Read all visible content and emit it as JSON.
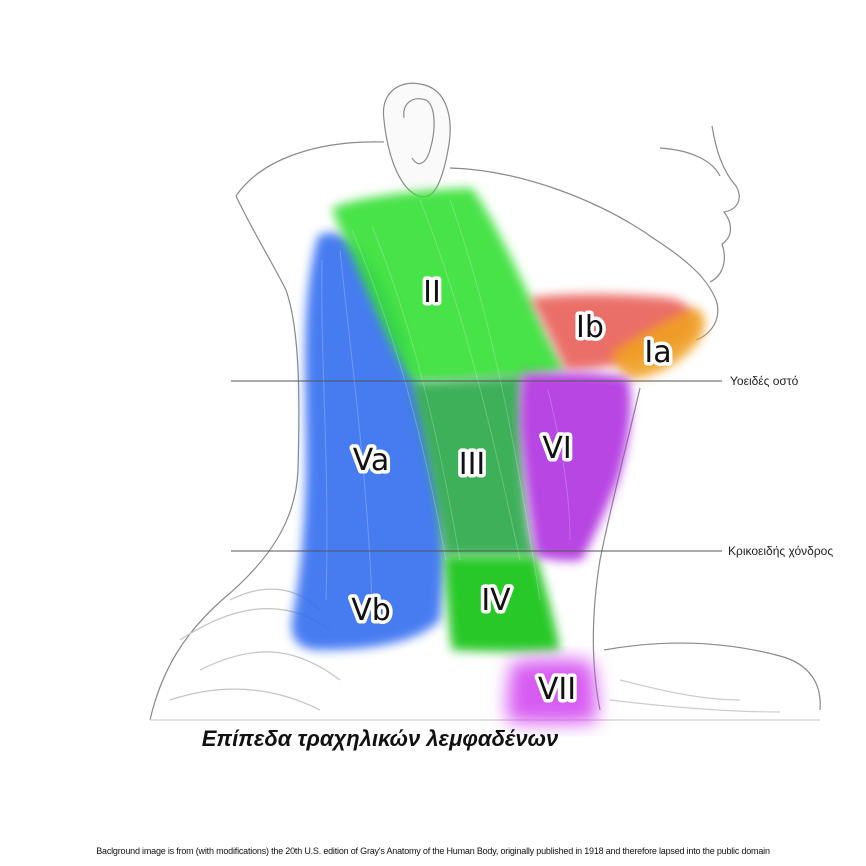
{
  "colors": {
    "level_I": "#e8564f",
    "level_Ia": "#f0a020",
    "level_II": "#35e035",
    "level_III": "#2aa84a",
    "level_IV": "#19c419",
    "level_V": "#2e6bf0",
    "level_VI": "#b030e0",
    "level_VII": "#d040f0"
  },
  "levels": {
    "Ia": "Ia",
    "Ib": "Ib",
    "II": "II",
    "III": "III",
    "IV": "IV",
    "Va": "Va",
    "Vb": "Vb",
    "VI": "VI",
    "VII": "VII"
  },
  "reference_lines": {
    "hyoid": "Υοειδές οστό",
    "cricoid": "Κρικοειδής χόνδρος"
  },
  "title": "Επίπεδα τραχηλικών λεμφαδένων",
  "credit": "Baclground image is from (with modifications) the 20th U.S. edition of Gray's Anatomy of the Human Body, originally published in 1918 and therefore lapsed into the public domain"
}
